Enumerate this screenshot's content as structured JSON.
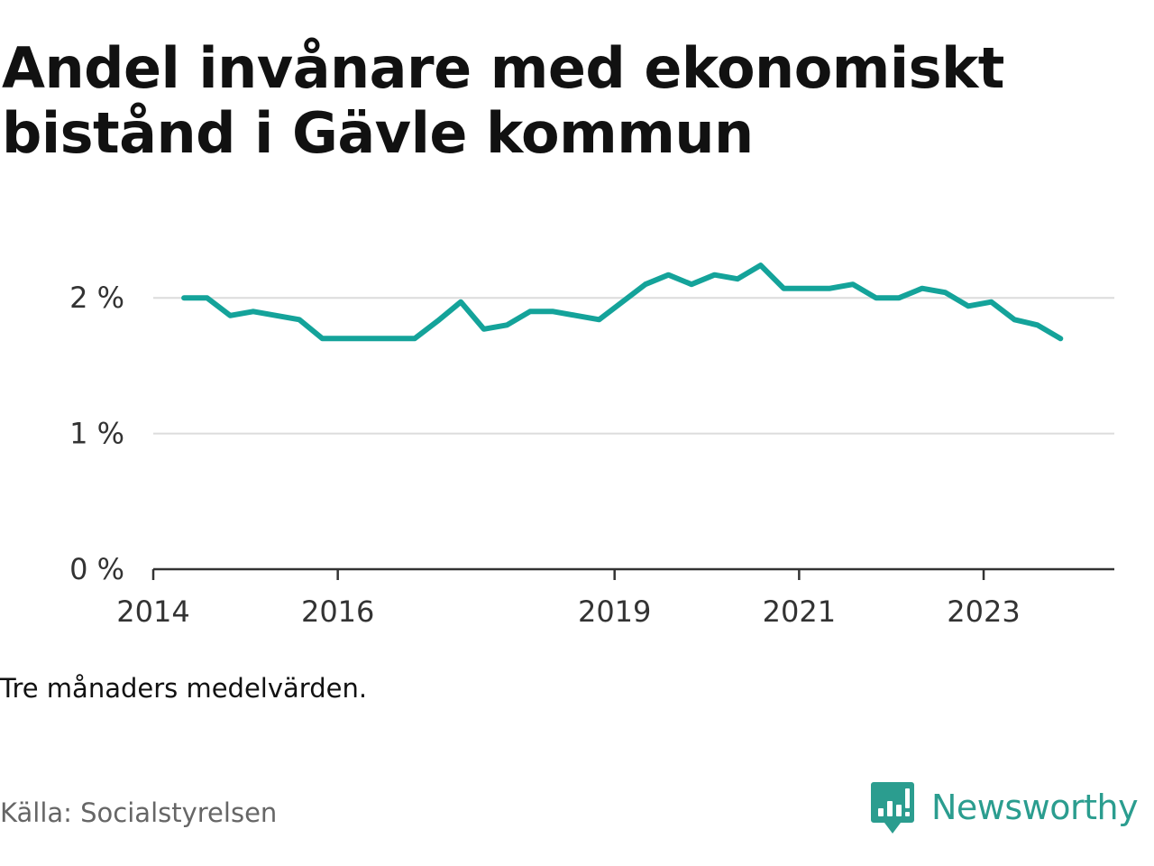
{
  "title": "Andel invånare med ekonomiskt bistånd i Gävle kommun",
  "note": "Tre månaders medelvärden.",
  "source": "Källa: Socialstyrelsen",
  "brand": {
    "name": "Newsworthy",
    "color": "#2b9d8f",
    "icon": "bar-chart-speech-bubble-icon"
  },
  "chart_data": {
    "type": "line",
    "title": "Andel invånare med ekonomiskt bistånd i Gävle kommun",
    "xlabel": "",
    "ylabel": "",
    "line_color": "#14a39a",
    "grid": true,
    "x_ticks": [
      "2014",
      "2016",
      "2019",
      "2021",
      "2023"
    ],
    "y_ticks": [
      {
        "value": 0,
        "label": "0 %"
      },
      {
        "value": 1,
        "label": "1 %"
      },
      {
        "value": 2,
        "label": "2 %"
      }
    ],
    "xlim": [
      "2014-01-01",
      "2024-06-01"
    ],
    "ylim": [
      0,
      2.6
    ],
    "series": [
      {
        "x": [
          "2014-05",
          "2014-08",
          "2014-11",
          "2015-02",
          "2015-05",
          "2015-08",
          "2015-11",
          "2016-02",
          "2016-05",
          "2016-08",
          "2016-11",
          "2017-02",
          "2017-05",
          "2017-08",
          "2017-11",
          "2018-02",
          "2018-05",
          "2018-08",
          "2018-11",
          "2019-02",
          "2019-05",
          "2019-08",
          "2019-11",
          "2020-02",
          "2020-05",
          "2020-08",
          "2020-11",
          "2021-02",
          "2021-05",
          "2021-08",
          "2021-11",
          "2022-02",
          "2022-05",
          "2022-08",
          "2022-11",
          "2023-02",
          "2023-05",
          "2023-08",
          "2023-11"
        ],
        "y": [
          2.0,
          2.0,
          1.87,
          1.9,
          1.87,
          1.84,
          1.7,
          1.7,
          1.7,
          1.7,
          1.7,
          1.83,
          1.97,
          1.77,
          1.8,
          1.9,
          1.9,
          1.87,
          1.84,
          1.97,
          2.1,
          2.17,
          2.1,
          2.17,
          2.14,
          2.24,
          2.07,
          2.07,
          2.07,
          2.1,
          2.0,
          2.0,
          2.07,
          2.04,
          1.94,
          1.97,
          1.84,
          1.8,
          1.7
        ]
      }
    ]
  }
}
